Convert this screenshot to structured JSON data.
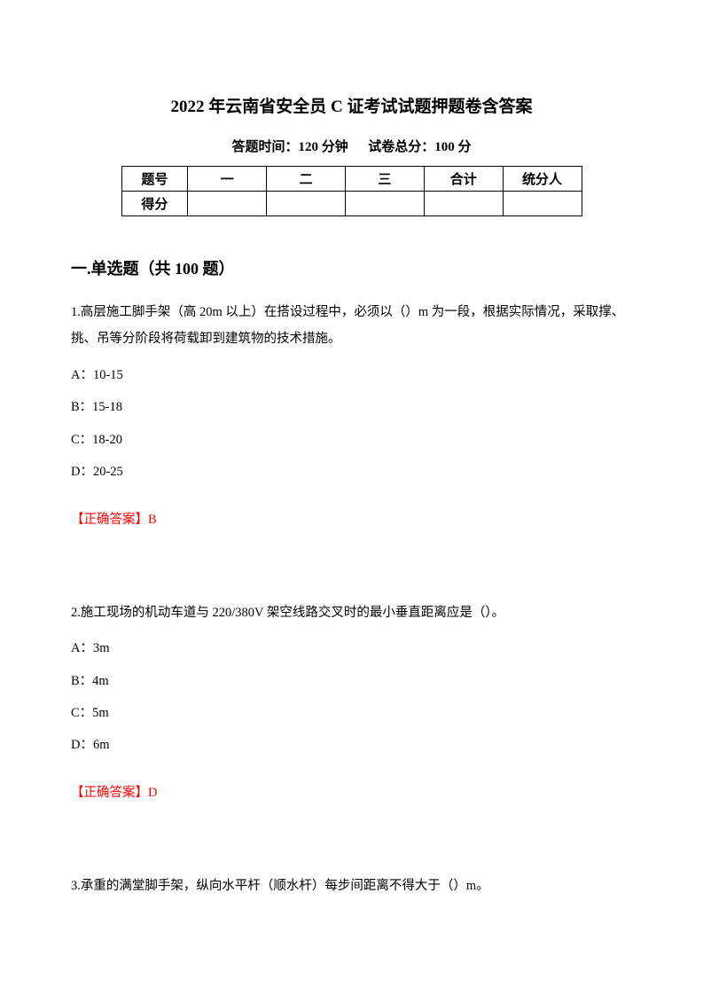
{
  "title": "2022 年云南省安全员 C 证考试试题押题卷含答案",
  "subtitle_left": "答题时间：120 分钟",
  "subtitle_right": "试卷总分：100 分",
  "score_table": {
    "headers": [
      "题号",
      "一",
      "二",
      "三",
      "合计",
      "统分人"
    ],
    "row2_label": "得分"
  },
  "section_heading": "一.单选题（共 100 题）",
  "questions": [
    {
      "text": "1.高层施工脚手架（高 20m 以上）在搭设过程中，必须以（）m 为一段，根据实际情况，采取撑、挑、吊等分阶段将荷载卸到建筑物的技术措施。",
      "options": [
        "A：10-15",
        "B：15-18",
        "C：18-20",
        "D：20-25"
      ],
      "answer": "【正确答案】B"
    },
    {
      "text": "2.施工现场的机动车道与 220/380V 架空线路交叉时的最小垂直距离应是（）。",
      "options": [
        "A：3m",
        "B：4m",
        "C：5m",
        "D：6m"
      ],
      "answer": "【正确答案】D"
    },
    {
      "text": "3.承重的满堂脚手架，纵向水平杆（顺水杆）每步间距离不得大于（）m。",
      "options": [],
      "answer": ""
    }
  ],
  "colors": {
    "text": "#000000",
    "answer": "#ff0000",
    "background": "#ffffff",
    "border": "#000000"
  },
  "typography": {
    "title_fontsize": 19,
    "subtitle_fontsize": 15,
    "heading_fontsize": 18,
    "body_fontsize": 14.5,
    "line_height": 2.1
  }
}
